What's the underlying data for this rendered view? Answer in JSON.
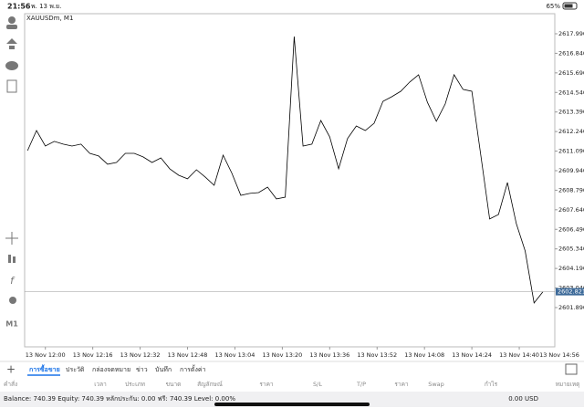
{
  "status": {
    "time": "21:56",
    "date": "พ. 13 พ.ย.",
    "battery": "65%"
  },
  "timeframe": "M1",
  "chart_data": {
    "type": "line",
    "title": "XAUUSDm, M1",
    "color": "#000000",
    "x": [
      "13 Nov 11:54",
      "13 Nov 11:57",
      "13 Nov 12:00",
      "13 Nov 12:03",
      "13 Nov 12:06",
      "13 Nov 12:09",
      "13 Nov 12:12",
      "13 Nov 12:15",
      "13 Nov 12:18",
      "13 Nov 12:21",
      "13 Nov 12:24",
      "13 Nov 12:27",
      "13 Nov 12:30",
      "13 Nov 12:33",
      "13 Nov 12:36",
      "13 Nov 12:39",
      "13 Nov 12:42",
      "13 Nov 12:45",
      "13 Nov 12:48",
      "13 Nov 12:51",
      "13 Nov 12:54",
      "13 Nov 12:57",
      "13 Nov 13:00",
      "13 Nov 13:03",
      "13 Nov 13:06",
      "13 Nov 13:09",
      "13 Nov 13:12",
      "13 Nov 13:15",
      "13 Nov 13:18",
      "13 Nov 13:21",
      "13 Nov 13:24",
      "13 Nov 13:27",
      "13 Nov 13:30",
      "13 Nov 13:33",
      "13 Nov 13:36",
      "13 Nov 13:39",
      "13 Nov 13:42",
      "13 Nov 13:45",
      "13 Nov 13:48",
      "13 Nov 13:51",
      "13 Nov 13:54",
      "13 Nov 13:57",
      "13 Nov 14:00",
      "13 Nov 14:03",
      "13 Nov 14:06",
      "13 Nov 14:09",
      "13 Nov 14:12",
      "13 Nov 14:15",
      "13 Nov 14:18",
      "13 Nov 14:21",
      "13 Nov 14:24",
      "13 Nov 14:27",
      "13 Nov 14:30",
      "13 Nov 14:33",
      "13 Nov 14:36",
      "13 Nov 14:39",
      "13 Nov 14:42",
      "13 Nov 14:45",
      "13 Nov 14:48"
    ],
    "values": [
      2611.12,
      2612.3,
      2611.39,
      2611.66,
      2611.5,
      2611.39,
      2611.5,
      2610.96,
      2610.8,
      2610.32,
      2610.42,
      2610.96,
      2610.96,
      2610.75,
      2610.42,
      2610.69,
      2610.05,
      2609.67,
      2609.46,
      2609.99,
      2609.56,
      2609.08,
      2610.85,
      2609.78,
      2608.49,
      2608.6,
      2608.65,
      2608.97,
      2608.28,
      2608.38,
      2617.83,
      2611.39,
      2611.5,
      2612.89,
      2611.93,
      2610.05,
      2611.82,
      2612.57,
      2612.3,
      2612.73,
      2614.02,
      2614.29,
      2614.61,
      2615.15,
      2615.58,
      2613.96,
      2612.84,
      2613.86,
      2615.58,
      2614.72,
      2614.61,
      2610.85,
      2607.1,
      2607.36,
      2609.24,
      2606.83,
      2605.22,
      2602.16,
      2602.82
    ],
    "xlim": [
      "13 Nov 11:53",
      "13 Nov 14:52"
    ],
    "xticks": [
      "13 Nov 12:00",
      "13 Nov 12:16",
      "13 Nov 12:32",
      "13 Nov 12:48",
      "13 Nov 13:04",
      "13 Nov 13:20",
      "13 Nov 13:36",
      "13 Nov 13:52",
      "13 Nov 14:08",
      "13 Nov 14:24",
      "13 Nov 14:40",
      "13 Nov 14:56"
    ],
    "ylim": [
      2599.58,
      2619.17
    ],
    "yticks": [
      {
        "value": 2617.99,
        "label": "2617.990"
      },
      {
        "value": 2616.84,
        "label": "2616.840"
      },
      {
        "value": 2615.69,
        "label": "2615.690"
      },
      {
        "value": 2614.54,
        "label": "2614.540"
      },
      {
        "value": 2613.39,
        "label": "2613.390"
      },
      {
        "value": 2612.24,
        "label": "2612.240"
      },
      {
        "value": 2611.09,
        "label": "2611.090"
      },
      {
        "value": 2609.94,
        "label": "2609.940"
      },
      {
        "value": 2608.79,
        "label": "2608.790"
      },
      {
        "value": 2607.64,
        "label": "2607.640"
      },
      {
        "value": 2606.49,
        "label": "2606.490"
      },
      {
        "value": 2605.34,
        "label": "2605.340"
      },
      {
        "value": 2604.19,
        "label": "2604.190"
      },
      {
        "value": 2603.04,
        "label": "2603.040"
      },
      {
        "value": 2601.89,
        "label": "2601.890"
      }
    ],
    "current_price": {
      "value": 2602.821,
      "label": "2602.821"
    }
  },
  "tabs": [
    "การซื้อขาย",
    "ประวัติ",
    "กล่องจดหมาย",
    "ข่าว",
    "บันทึก",
    "การตั้งค่า"
  ],
  "table": {
    "columns": [
      "คำสั่ง",
      "เวลา",
      "ประเภท",
      "ขนาด",
      "สัญลักษณ์",
      "ราคา",
      "S/L",
      "T/P",
      "ราคา",
      "Swap",
      "กำไร",
      "หมายเหตุ"
    ]
  },
  "footer": {
    "balance": "Balance: 740.39 Equity: 740.39 หลักประกัน: 0.00 ฟรี: 740.39 Level: 0.00%",
    "total": "0.00 USD"
  }
}
